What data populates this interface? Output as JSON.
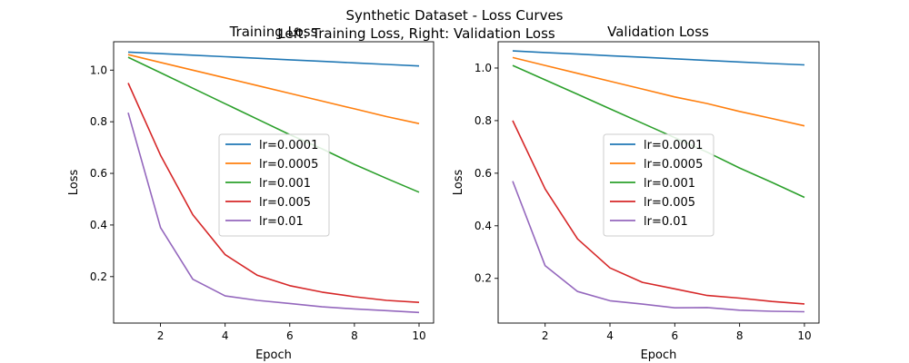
{
  "figure": {
    "suptitle_line1": "Synthetic Dataset - Loss Curves",
    "suptitle_line2": "Left: Training Loss, Right: Validation Loss"
  },
  "chart_data": [
    {
      "type": "line",
      "title": "Training Loss",
      "xlabel": "Epoch",
      "ylabel": "Loss",
      "xlim": [
        0.55,
        10.45
      ],
      "ylim": [
        0.02,
        1.11
      ],
      "xticks": [
        2,
        4,
        6,
        8,
        10
      ],
      "yticks": [
        0.2,
        0.4,
        0.6,
        0.8,
        1.0
      ],
      "ytick_labels": [
        "0.2",
        "0.4",
        "0.6",
        "0.8",
        "1.0"
      ],
      "grid": false,
      "legend_position": "center",
      "x": [
        1,
        2,
        3,
        4,
        5,
        6,
        7,
        8,
        9,
        10
      ],
      "series": [
        {
          "name": "lr=0.0001",
          "color": "#1f77b4",
          "values": [
            1.07,
            1.064,
            1.058,
            1.052,
            1.046,
            1.04,
            1.034,
            1.028,
            1.022,
            1.016
          ]
        },
        {
          "name": "lr=0.0005",
          "color": "#ff7f0e",
          "values": [
            1.06,
            1.03,
            1.0,
            0.97,
            0.94,
            0.91,
            0.88,
            0.85,
            0.82,
            0.793
          ]
        },
        {
          "name": "lr=0.001",
          "color": "#2ca02c",
          "values": [
            1.05,
            0.99,
            0.93,
            0.87,
            0.81,
            0.75,
            0.695,
            0.635,
            0.58,
            0.527
          ]
        },
        {
          "name": "lr=0.005",
          "color": "#d62728",
          "values": [
            0.95,
            0.67,
            0.44,
            0.285,
            0.205,
            0.165,
            0.14,
            0.122,
            0.108,
            0.1
          ]
        },
        {
          "name": "lr=0.01",
          "color": "#9467bd",
          "values": [
            0.835,
            0.39,
            0.19,
            0.125,
            0.108,
            0.096,
            0.083,
            0.075,
            0.068,
            0.061
          ]
        }
      ]
    },
    {
      "type": "line",
      "title": "Validation Loss",
      "xlabel": "Epoch",
      "ylabel": "Loss",
      "xlim": [
        0.55,
        10.45
      ],
      "ylim": [
        0.03,
        1.1
      ],
      "xticks": [
        2,
        4,
        6,
        8,
        10
      ],
      "yticks": [
        0.2,
        0.4,
        0.6,
        0.8,
        1.0
      ],
      "ytick_labels": [
        "0.2",
        "0.4",
        "0.6",
        "0.8",
        "1.0"
      ],
      "grid": false,
      "legend_position": "center",
      "x": [
        1,
        2,
        3,
        4,
        5,
        6,
        7,
        8,
        9,
        10
      ],
      "series": [
        {
          "name": "lr=0.0001",
          "color": "#1f77b4",
          "values": [
            1.065,
            1.059,
            1.053,
            1.047,
            1.041,
            1.035,
            1.029,
            1.023,
            1.017,
            1.012
          ]
        },
        {
          "name": "lr=0.0005",
          "color": "#ff7f0e",
          "values": [
            1.04,
            1.01,
            0.98,
            0.95,
            0.92,
            0.89,
            0.865,
            0.835,
            0.808,
            0.78
          ]
        },
        {
          "name": "lr=0.001",
          "color": "#2ca02c",
          "values": [
            1.01,
            0.955,
            0.9,
            0.845,
            0.79,
            0.735,
            0.68,
            0.62,
            0.565,
            0.508
          ]
        },
        {
          "name": "lr=0.005",
          "color": "#d62728",
          "values": [
            0.8,
            0.54,
            0.35,
            0.24,
            0.185,
            0.16,
            0.135,
            0.125,
            0.112,
            0.103
          ]
        },
        {
          "name": "lr=0.01",
          "color": "#9467bd",
          "values": [
            0.57,
            0.248,
            0.15,
            0.115,
            0.102,
            0.088,
            0.089,
            0.079,
            0.075,
            0.073
          ]
        }
      ]
    }
  ]
}
